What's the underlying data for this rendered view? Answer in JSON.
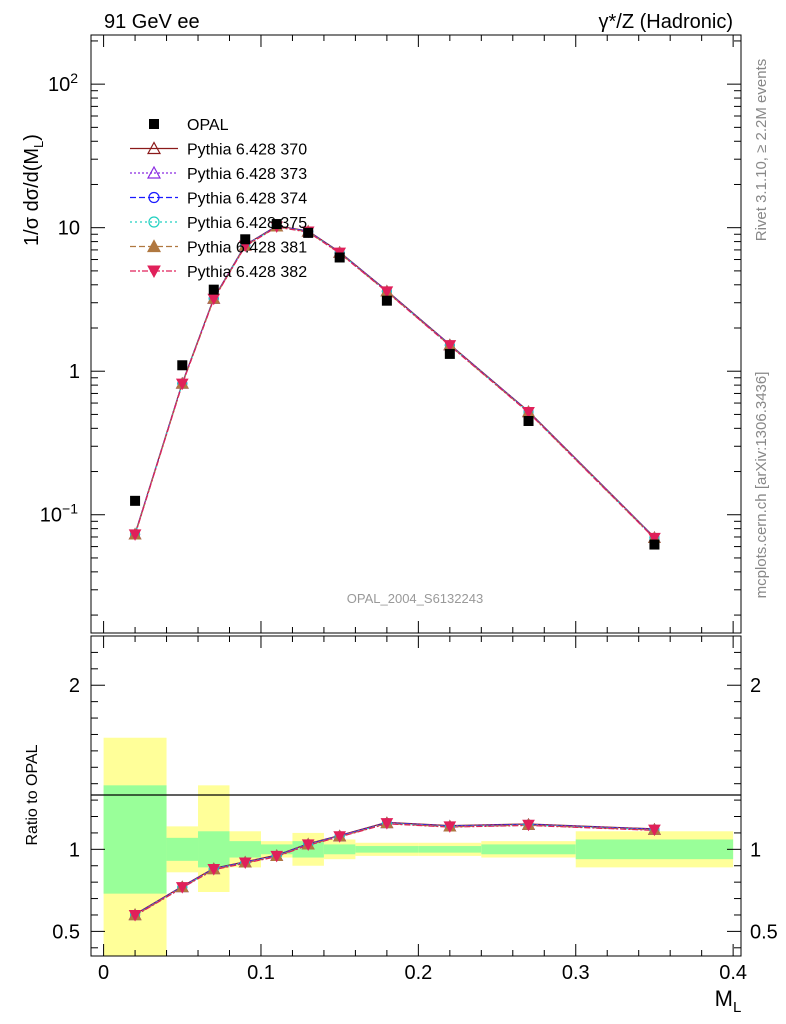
{
  "header": {
    "left": "91 GeV ee",
    "right": "γ*/Z (Hadronic)"
  },
  "side_labels": {
    "rivet": "Rivet 3.1.10, ≥ 2.2M events",
    "mcplots": "mcplots.cern.ch [arXiv:1306.3436]"
  },
  "watermark": "OPAL_2004_S6132243",
  "chart_data": [
    {
      "type": "scatter",
      "panel": "main",
      "ylabel": "1/σ dσ/d(M_L)",
      "yscale": "log",
      "ylim": [
        0.015,
        220
      ],
      "xlim": [
        -0.008,
        0.405
      ],
      "y_ticks": [
        {
          "value": 100,
          "label": "10",
          "sup": "2"
        },
        {
          "value": 10,
          "label": "10",
          "sup": ""
        },
        {
          "value": 1,
          "label": "1",
          "sup": ""
        },
        {
          "value": 0.1,
          "label": "10",
          "sup": "−1"
        }
      ],
      "data": {
        "name": "OPAL",
        "color": "#000000",
        "x": [
          0.02,
          0.05,
          0.07,
          0.09,
          0.11,
          0.13,
          0.15,
          0.18,
          0.22,
          0.27,
          0.35
        ],
        "y": [
          0.125,
          1.1,
          3.7,
          8.3,
          10.6,
          9.2,
          6.2,
          3.1,
          1.32,
          0.45,
          0.062
        ]
      },
      "series": [
        {
          "name": "Pythia 6.428 370",
          "color": "#8b1a1a",
          "dash": "",
          "marker": "triangle-open"
        },
        {
          "name": "Pythia 6.428 373",
          "color": "#8a2be2",
          "dash": "2,2",
          "marker": "triangle-open"
        },
        {
          "name": "Pythia 6.428 374",
          "color": "#1a1aff",
          "dash": "6,3",
          "marker": "circle-open"
        },
        {
          "name": "Pythia 6.428 375",
          "color": "#20d0c0",
          "dash": "2,3",
          "marker": "circle-open"
        },
        {
          "name": "Pythia 6.428 381",
          "color": "#b07840",
          "dash": "6,3",
          "marker": "triangle-filled"
        },
        {
          "name": "Pythia 6.428 382",
          "color": "#e0205a",
          "dash": "6,2,2,2",
          "marker": "triangle-down-filled"
        }
      ],
      "mc_x": [
        0.02,
        0.05,
        0.07,
        0.09,
        0.11,
        0.13,
        0.15,
        0.18,
        0.22,
        0.27,
        0.35
      ],
      "mc_y": [
        0.073,
        0.82,
        3.2,
        7.5,
        10.2,
        9.4,
        6.7,
        3.6,
        1.52,
        0.52,
        0.069
      ]
    },
    {
      "type": "scatter",
      "panel": "ratio",
      "ylabel": "Ratio to OPAL",
      "xlabel": "M_L",
      "ylim": [
        0.35,
        2.3
      ],
      "xlim": [
        -0.008,
        0.405
      ],
      "y_ticks": [
        0.5,
        1,
        2
      ],
      "y_tick_labels": [
        "0.5",
        "1",
        "2"
      ],
      "x_ticks": [
        0,
        0.1,
        0.2,
        0.3,
        0.4
      ],
      "x_tick_labels": [
        "0",
        "0.1",
        "0.2",
        "0.3",
        "0.4"
      ],
      "x": [
        0.02,
        0.05,
        0.07,
        0.09,
        0.11,
        0.13,
        0.15,
        0.18,
        0.22,
        0.27,
        0.35
      ],
      "ratio": [
        0.6,
        0.77,
        0.88,
        0.92,
        0.96,
        1.03,
        1.08,
        1.16,
        1.14,
        1.15,
        1.12
      ],
      "bands": [
        {
          "x0": 0.0,
          "x1": 0.04,
          "green": [
            0.73,
            1.39
          ],
          "yellow": [
            0.35,
            1.68
          ]
        },
        {
          "x0": 0.04,
          "x1": 0.06,
          "green": [
            0.93,
            1.07
          ],
          "yellow": [
            0.86,
            1.14
          ]
        },
        {
          "x0": 0.06,
          "x1": 0.08,
          "green": [
            0.89,
            1.11
          ],
          "yellow": [
            0.74,
            1.39
          ]
        },
        {
          "x0": 0.08,
          "x1": 0.1,
          "green": [
            0.95,
            1.05
          ],
          "yellow": [
            0.89,
            1.11
          ]
        },
        {
          "x0": 0.1,
          "x1": 0.12,
          "green": [
            0.97,
            1.03
          ],
          "yellow": [
            0.95,
            1.05
          ]
        },
        {
          "x0": 0.12,
          "x1": 0.14,
          "green": [
            0.95,
            1.05
          ],
          "yellow": [
            0.9,
            1.1
          ]
        },
        {
          "x0": 0.14,
          "x1": 0.16,
          "green": [
            0.97,
            1.03
          ],
          "yellow": [
            0.94,
            1.06
          ]
        },
        {
          "x0": 0.16,
          "x1": 0.2,
          "green": [
            0.98,
            1.02
          ],
          "yellow": [
            0.96,
            1.04
          ]
        },
        {
          "x0": 0.2,
          "x1": 0.24,
          "green": [
            0.98,
            1.02
          ],
          "yellow": [
            0.96,
            1.04
          ]
        },
        {
          "x0": 0.24,
          "x1": 0.3,
          "green": [
            0.97,
            1.03
          ],
          "yellow": [
            0.95,
            1.05
          ]
        },
        {
          "x0": 0.3,
          "x1": 0.4,
          "green": [
            0.94,
            1.06
          ],
          "yellow": [
            0.89,
            1.11
          ]
        }
      ],
      "colors": {
        "green": "#99ff99",
        "yellow": "#ffff99"
      }
    }
  ]
}
